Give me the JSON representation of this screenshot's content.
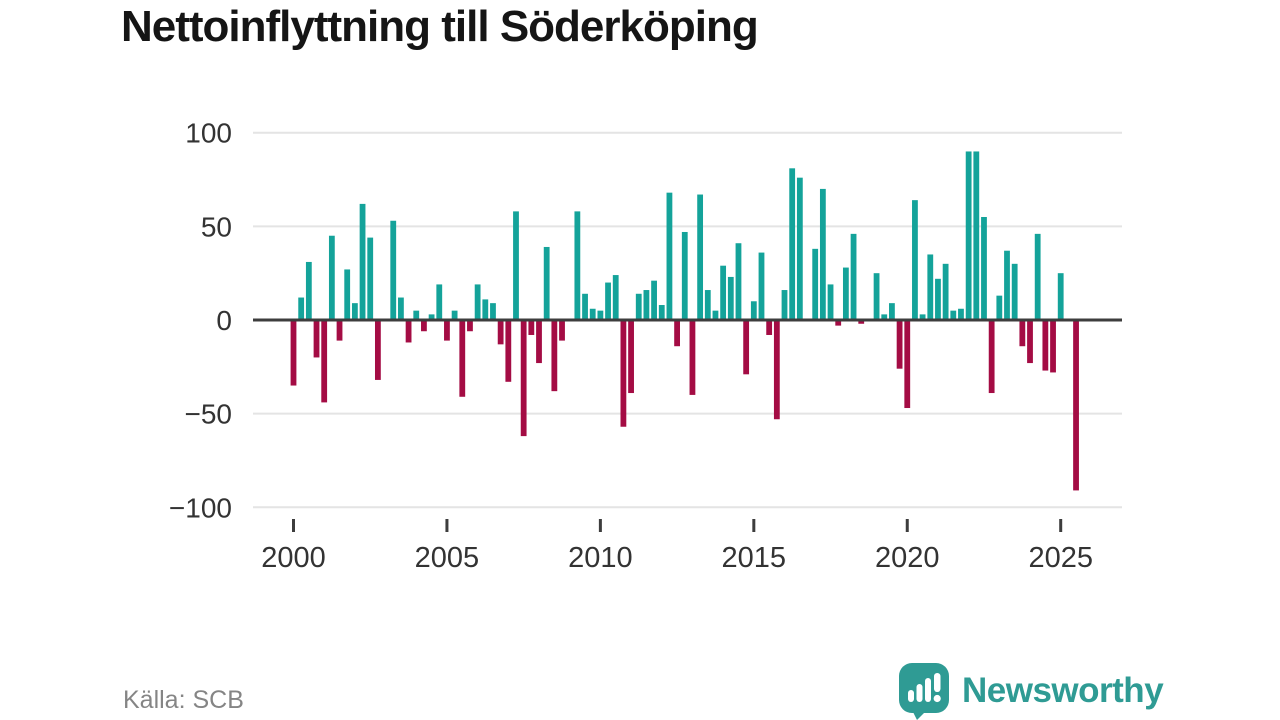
{
  "title": "Nettoinflyttning till Söderköping",
  "source": "Källa: SCB",
  "brand": {
    "name": "Newsworthy",
    "logo_icon": "speech-bubble-bar-chart-icon",
    "color": "#2f9b94"
  },
  "chart_data": {
    "type": "bar",
    "title": "Nettoinflyttning till Söderköping",
    "frequency": "quarterly",
    "start_year": 2000,
    "start_quarter": 1,
    "end_year": 2025,
    "end_quarter": 3,
    "x_tick_labels": [
      "2000",
      "2005",
      "2010",
      "2015",
      "2020",
      "2025"
    ],
    "y_tick_labels": [
      "100",
      "50",
      "0",
      "−50",
      "−100"
    ],
    "y_tick_values": [
      100,
      50,
      0,
      -50,
      -100
    ],
    "ylim": [
      -100,
      100
    ],
    "grid": "horizontal",
    "legend": "none",
    "positive_color": "#14a39a",
    "negative_color": "#a40c44",
    "axis_color": "#3d3d3d",
    "grid_color": "#e4e4e4",
    "tick_label_color": "#333333",
    "values": [
      -35,
      12,
      31,
      -20,
      -44,
      45,
      -11,
      27,
      9,
      62,
      44,
      -32,
      0,
      53,
      12,
      -12,
      5,
      -6,
      3,
      19,
      -11,
      5,
      -41,
      -6,
      19,
      11,
      9,
      -13,
      -33,
      58,
      -62,
      -8,
      -23,
      39,
      -38,
      -11,
      0,
      58,
      14,
      6,
      5,
      20,
      24,
      -57,
      -39,
      14,
      16,
      21,
      8,
      68,
      -14,
      47,
      -40,
      67,
      16,
      5,
      29,
      23,
      41,
      -29,
      10,
      36,
      -8,
      -53,
      16,
      81,
      76,
      0,
      38,
      70,
      19,
      -3,
      28,
      46,
      -2,
      0,
      25,
      3,
      9,
      -26,
      -47,
      64,
      3,
      35,
      22,
      30,
      5,
      6,
      90,
      90,
      55,
      -39,
      13,
      37,
      30,
      -14,
      -23,
      46,
      -27,
      -28,
      25,
      0,
      -91
    ]
  }
}
